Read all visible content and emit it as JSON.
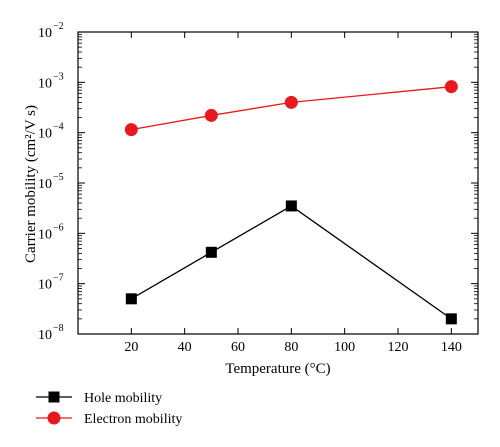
{
  "chart_data": {
    "type": "line",
    "xlabel": "Temperature (°C)",
    "ylabel": "Carrier mobility (cm²/V s)",
    "xlim": [
      0,
      150
    ],
    "ylim": [
      1e-08,
      0.01
    ],
    "yscale": "log",
    "grid": false,
    "legend_position": "bottom-left, below plot",
    "x_ticks": [
      20,
      40,
      60,
      80,
      100,
      120,
      140
    ],
    "y_ticks": [
      {
        "value": 1e-08,
        "base": "10",
        "exp": "−8"
      },
      {
        "value": 1e-07,
        "base": "10",
        "exp": "−7"
      },
      {
        "value": 1e-06,
        "base": "10",
        "exp": "−6"
      },
      {
        "value": 1e-05,
        "base": "10",
        "exp": "−5"
      },
      {
        "value": 0.0001,
        "base": "10",
        "exp": "−4"
      },
      {
        "value": 0.001,
        "base": "10",
        "exp": "−3"
      },
      {
        "value": 0.01,
        "base": "10",
        "exp": "−2"
      }
    ],
    "series": [
      {
        "name": "Hole mobility",
        "marker": "square",
        "color": "#000000",
        "x": [
          20,
          50,
          80,
          140
        ],
        "y": [
          5e-08,
          4.2e-07,
          3.5e-06,
          2e-08
        ]
      },
      {
        "name": "Electron mobility",
        "marker": "circle",
        "color": "#e8191e",
        "x": [
          20,
          50,
          80,
          140
        ],
        "y": [
          0.000115,
          0.00022,
          0.0004,
          0.00082
        ]
      }
    ]
  }
}
